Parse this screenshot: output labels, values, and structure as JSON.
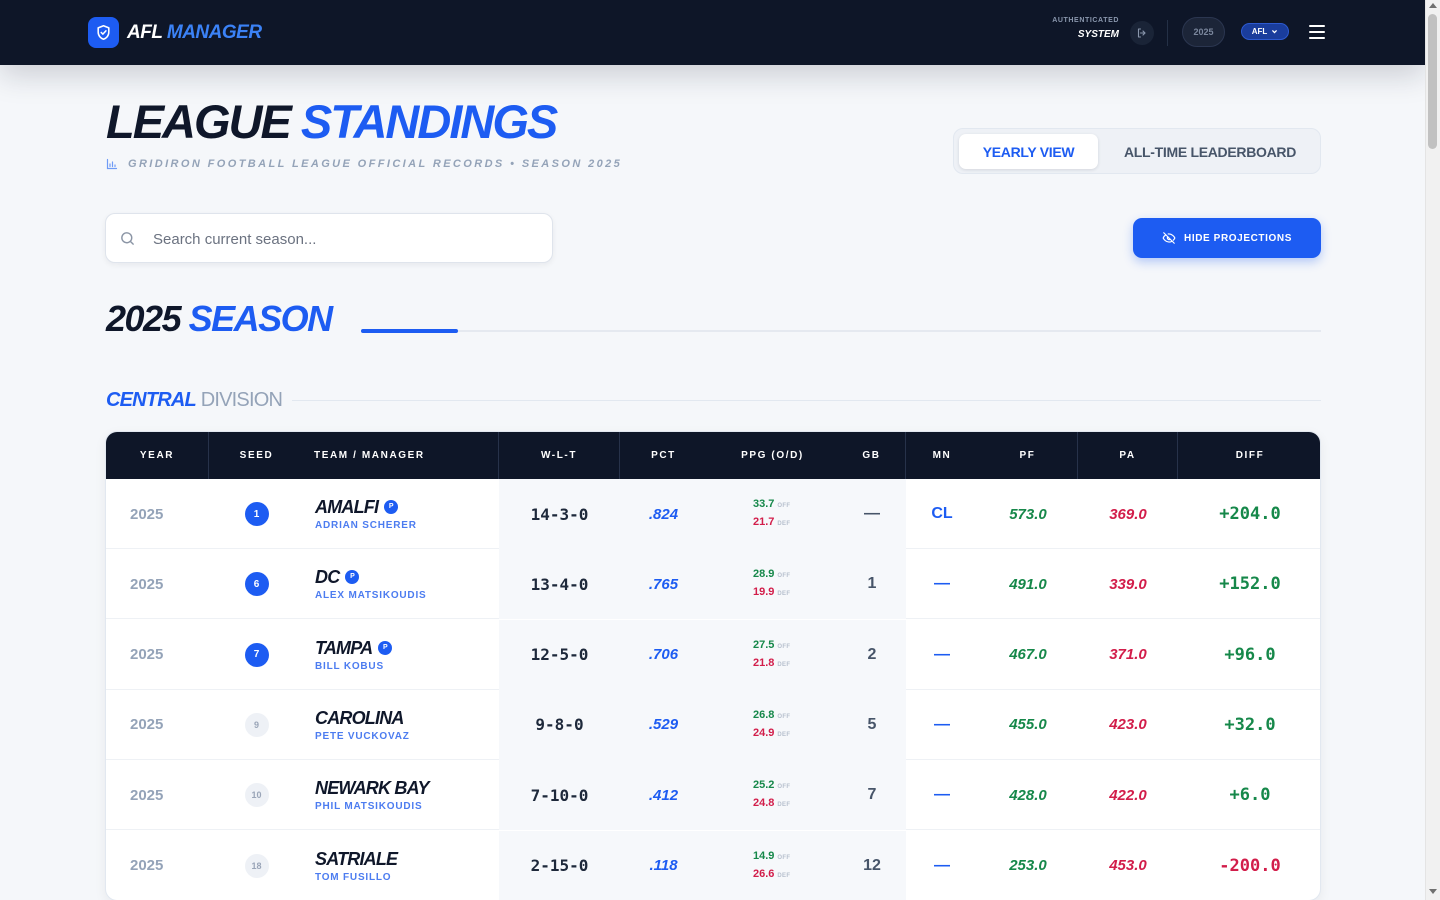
{
  "header": {
    "logo_primary": "AFL",
    "logo_secondary": "MANAGER",
    "auth_label": "AUTHENTICATED",
    "auth_user": "SYSTEM",
    "year_pill": "2025",
    "league_pill": "AFL"
  },
  "page": {
    "title_dark": "LEAGUE",
    "title_blue": "STANDINGS",
    "subtitle": "GRIDIRON FOOTBALL LEAGUE OFFICIAL RECORDS • SEASON 2025",
    "view_tabs": [
      "YEARLY VIEW",
      "ALL-TIME LEADERBOARD"
    ],
    "active_tab": "YEARLY VIEW",
    "search_placeholder": "Search current season...",
    "hide_projections_label": "HIDE PROJECTIONS",
    "season_year": "2025",
    "season_word": "SEASON",
    "division_strong": "CENTRAL",
    "division_light": "DIVISION"
  },
  "table": {
    "headers": [
      "YEAR",
      "SEED",
      "TEAM / MANAGER",
      "W-L-T",
      "PCT",
      "PPG (O/D)",
      "GB",
      "MN",
      "PF",
      "PA",
      "DIFF"
    ],
    "off_tag": "OFF",
    "def_tag": "DEF",
    "rows": [
      {
        "year": "2025",
        "seed": "1",
        "playoff": true,
        "team": "AMALFI",
        "badge": "P",
        "manager": "ADRIAN SCHERER",
        "wlt": "14-3-0",
        "pct": ".824",
        "ppg_off": "33.7",
        "ppg_def": "21.7",
        "gb": "—",
        "mn": "CL",
        "pf": "573.0",
        "pa": "369.0",
        "diff": "+204.0"
      },
      {
        "year": "2025",
        "seed": "6",
        "playoff": true,
        "team": "DC",
        "badge": "P",
        "manager": "ALEX MATSIKOUDIS",
        "wlt": "13-4-0",
        "pct": ".765",
        "ppg_off": "28.9",
        "ppg_def": "19.9",
        "gb": "1",
        "mn": "—",
        "pf": "491.0",
        "pa": "339.0",
        "diff": "+152.0"
      },
      {
        "year": "2025",
        "seed": "7",
        "playoff": true,
        "team": "TAMPA",
        "badge": "P",
        "manager": "BILL KOBUS",
        "wlt": "12-5-0",
        "pct": ".706",
        "ppg_off": "27.5",
        "ppg_def": "21.8",
        "gb": "2",
        "mn": "—",
        "pf": "467.0",
        "pa": "371.0",
        "diff": "+96.0"
      },
      {
        "year": "2025",
        "seed": "9",
        "playoff": false,
        "team": "CAROLINA",
        "badge": "",
        "manager": "PETE VUCKOVAZ",
        "wlt": "9-8-0",
        "pct": ".529",
        "ppg_off": "26.8",
        "ppg_def": "24.9",
        "gb": "5",
        "mn": "—",
        "pf": "455.0",
        "pa": "423.0",
        "diff": "+32.0"
      },
      {
        "year": "2025",
        "seed": "10",
        "playoff": false,
        "team": "NEWARK BAY",
        "badge": "",
        "manager": "PHIL MATSIKOUDIS",
        "wlt": "7-10-0",
        "pct": ".412",
        "ppg_off": "25.2",
        "ppg_def": "24.8",
        "gb": "7",
        "mn": "—",
        "pf": "428.0",
        "pa": "422.0",
        "diff": "+6.0"
      },
      {
        "year": "2025",
        "seed": "18",
        "playoff": false,
        "team": "SATRIALE",
        "badge": "",
        "manager": "TOM FUSILLO",
        "wlt": "2-15-0",
        "pct": ".118",
        "ppg_off": "14.9",
        "ppg_def": "26.6",
        "gb": "12",
        "mn": "—",
        "pf": "253.0",
        "pa": "453.0",
        "diff": "-200.0"
      }
    ]
  },
  "colors": {
    "navy": "#0e1628",
    "accent": "#1d5cf2",
    "positive": "#16884a",
    "negative": "#d21d4a"
  },
  "icons": {
    "logo": "shield-check-icon",
    "logout": "logout-icon",
    "league_dropdown": "chevron-down-icon",
    "menu": "hamburger-menu-icon",
    "subtitle": "bar-chart-icon",
    "search": "search-icon",
    "hide_projections": "eye-off-icon"
  }
}
